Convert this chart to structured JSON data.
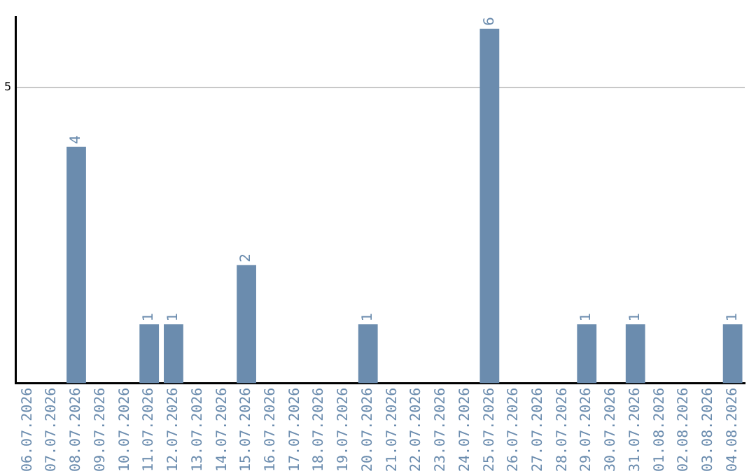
{
  "chart_data": {
    "type": "bar",
    "categories": [
      "06.07.2026",
      "07.07.2026",
      "08.07.2026",
      "09.07.2026",
      "10.07.2026",
      "11.07.2026",
      "12.07.2026",
      "13.07.2026",
      "14.07.2026",
      "15.07.2026",
      "16.07.2026",
      "17.07.2026",
      "18.07.2026",
      "19.07.2026",
      "20.07.2026",
      "21.07.2026",
      "22.07.2026",
      "23.07.2026",
      "24.07.2026",
      "25.07.2026",
      "26.07.2026",
      "27.07.2026",
      "28.07.2026",
      "29.07.2026",
      "30.07.2026",
      "31.07.2026",
      "01.08.2026",
      "02.08.2026",
      "03.08.2026",
      "04.08.2026"
    ],
    "values": [
      null,
      null,
      4,
      null,
      null,
      1,
      1,
      null,
      null,
      2,
      null,
      null,
      null,
      null,
      1,
      null,
      null,
      null,
      null,
      6,
      null,
      null,
      null,
      1,
      null,
      1,
      null,
      null,
      null,
      1
    ],
    "color": "#6b8cae",
    "ylim": [
      0,
      6.2
    ],
    "yticks": [
      5
    ],
    "grid": "y",
    "legend": false,
    "data_labels": true
  }
}
